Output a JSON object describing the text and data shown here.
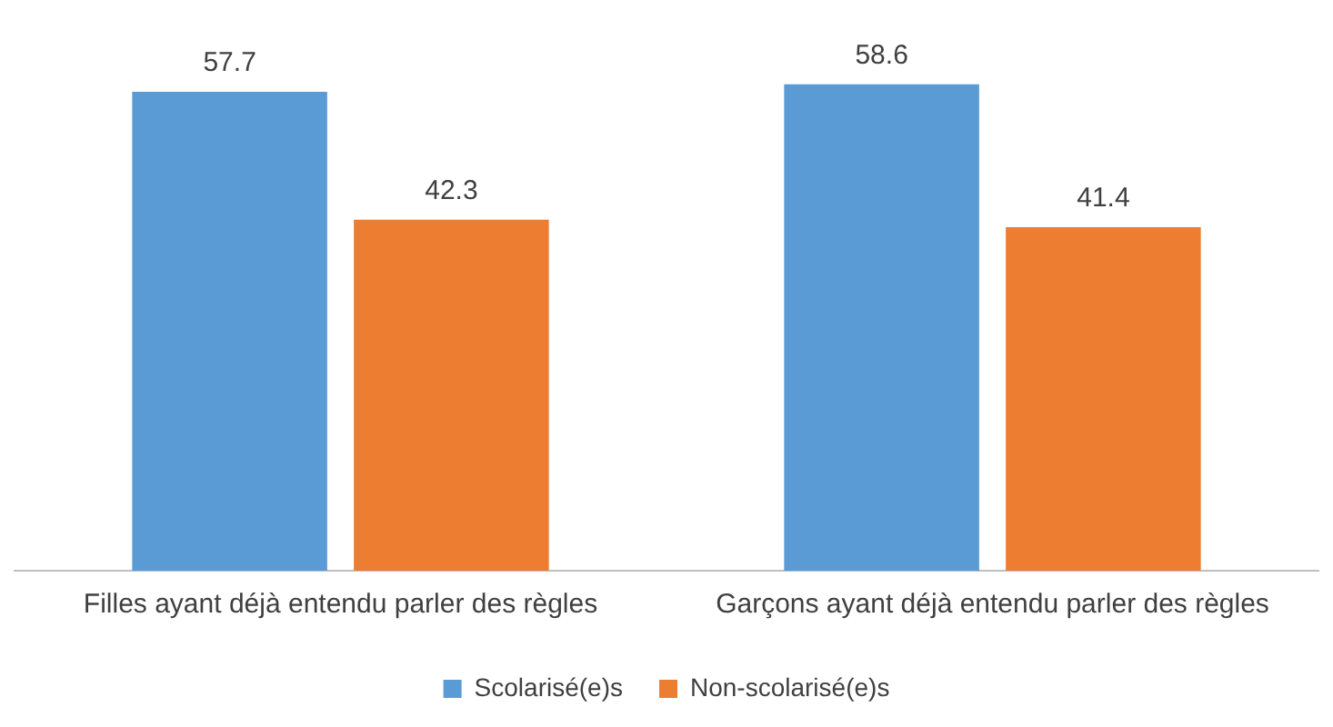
{
  "chart_data": {
    "type": "bar",
    "categories": [
      "Filles ayant déjà entendu parler des règles",
      "Garçons ayant déjà entendu parler des règles"
    ],
    "series": [
      {
        "name": "Scolarisé(e)s",
        "color": "#5b9bd5",
        "values": [
          57.7,
          58.6
        ]
      },
      {
        "name": "Non-scolarisé(e)s",
        "color": "#ed7d31",
        "values": [
          42.3,
          41.4
        ]
      }
    ],
    "data_labels": true,
    "grid": false,
    "legend": "bottom",
    "tick_labels": "x"
  }
}
